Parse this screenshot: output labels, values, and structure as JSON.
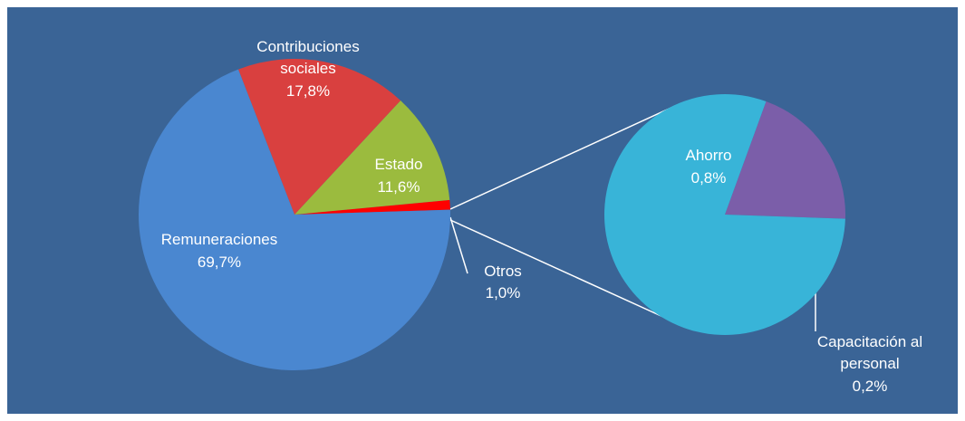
{
  "chart_data": [
    {
      "type": "pie",
      "categories": [
        "Otros",
        "Estado",
        "Contribuciones sociales",
        "Remuneraciones"
      ],
      "values": [
        1.0,
        11.6,
        17.8,
        69.7
      ],
      "value_labels": [
        "1,0%",
        "11,6%",
        "17,8%",
        "69,7%"
      ],
      "colors": [
        "#ff0000",
        "#9bbb3e",
        "#d9403f",
        "#4a87d0"
      ]
    },
    {
      "type": "pie",
      "categories": [
        "Capacitación al personal",
        "Ahorro"
      ],
      "values": [
        0.2,
        0.8
      ],
      "value_labels": [
        "0,2%",
        "0,8%"
      ],
      "colors": [
        "#7b5ea9",
        "#38b4d8"
      ]
    }
  ]
}
